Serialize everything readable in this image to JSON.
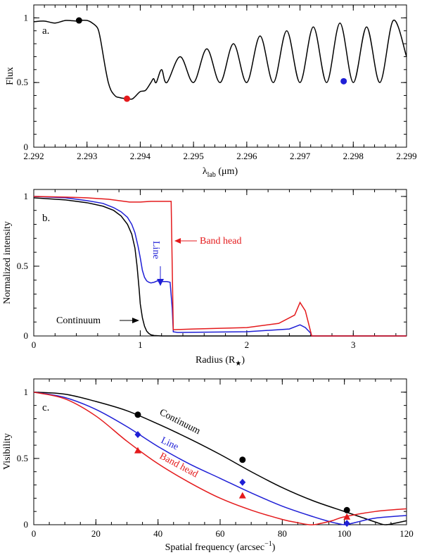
{
  "colors": {
    "black": "#000000",
    "red": "#e41a1c",
    "blue": "#1f1fd6"
  },
  "chart_data": [
    {
      "type": "line",
      "panel_label": "a.",
      "ylabel": "Flux",
      "xlabel_main": "λ",
      "xlabel_sub": "lab",
      "xlabel_unit": " (μm)",
      "xlim": [
        2.292,
        2.299
      ],
      "ylim": [
        0,
        1.1
      ],
      "x_ticks": [
        "2.292",
        "2.293",
        "2.294",
        "2.295",
        "2.296",
        "2.297",
        "2.298",
        "2.299"
      ],
      "y_ticks": [
        "0",
        "0.5",
        "1"
      ],
      "series": [
        {
          "name": "flux",
          "color": "black",
          "x": [
            2.292,
            2.2922,
            2.2924,
            2.2926,
            2.2928,
            2.29285,
            2.293,
            2.2931,
            2.2932,
            2.29325,
            2.2933,
            2.29335,
            2.2934,
            2.29345,
            2.2935,
            2.29355,
            2.2936,
            2.29365,
            2.2937,
            2.29375,
            2.2938,
            2.29385,
            2.2939,
            2.294,
            2.2941,
            2.2942,
            2.29425,
            2.2943,
            2.2944,
            2.2945,
            2.29475,
            2.295,
            2.29525,
            2.2955,
            2.29575,
            2.296,
            2.29625,
            2.2965,
            2.29675,
            2.297,
            2.29725,
            2.2975,
            2.29775,
            2.298,
            2.29825,
            2.2985,
            2.29875,
            2.299
          ],
          "y": [
            0.97,
            0.975,
            0.96,
            0.98,
            0.975,
            0.98,
            0.98,
            0.96,
            0.92,
            0.84,
            0.72,
            0.6,
            0.5,
            0.44,
            0.41,
            0.39,
            0.385,
            0.38,
            0.378,
            0.375,
            0.372,
            0.373,
            0.39,
            0.43,
            0.44,
            0.5,
            0.53,
            0.5,
            0.6,
            0.5,
            0.7,
            0.5,
            0.76,
            0.5,
            0.8,
            0.5,
            0.86,
            0.5,
            0.9,
            0.5,
            0.93,
            0.5,
            0.96,
            0.5,
            0.93,
            0.5,
            0.98,
            0.7
          ]
        }
      ],
      "markers": [
        {
          "x": 2.29285,
          "y": 0.98,
          "color": "black",
          "shape": "circle"
        },
        {
          "x": 2.29375,
          "y": 0.375,
          "color": "red",
          "shape": "circle"
        },
        {
          "x": 2.29782,
          "y": 0.51,
          "color": "blue",
          "shape": "circle"
        }
      ]
    },
    {
      "type": "line",
      "panel_label": "b.",
      "ylabel": "Normalized intensity",
      "xlabel_main": "Radius (R",
      "xlabel_sub": "★",
      "xlabel_unit": ")",
      "xlim": [
        0,
        3.5
      ],
      "ylim": [
        0,
        1.05
      ],
      "x_ticks": [
        "0",
        "1",
        "2",
        "3"
      ],
      "y_ticks": [
        "0",
        "0.5",
        "1"
      ],
      "series": [
        {
          "name": "Continuum",
          "color": "black",
          "x": [
            0,
            0.3,
            0.5,
            0.65,
            0.75,
            0.82,
            0.88,
            0.92,
            0.95,
            0.97,
            0.99,
            1.0,
            1.02,
            1.04,
            1.06,
            1.08,
            1.1,
            1.13,
            1.2,
            3.5
          ],
          "y": [
            0.99,
            0.975,
            0.955,
            0.93,
            0.9,
            0.86,
            0.8,
            0.73,
            0.63,
            0.5,
            0.33,
            0.23,
            0.13,
            0.07,
            0.035,
            0.018,
            0.008,
            0.003,
            0.0,
            0.0
          ]
        },
        {
          "name": "Line",
          "color": "blue",
          "x": [
            0,
            0.3,
            0.5,
            0.65,
            0.75,
            0.82,
            0.88,
            0.92,
            0.95,
            0.98,
            1.0,
            1.02,
            1.04,
            1.06,
            1.08,
            1.1,
            1.13,
            1.16,
            1.2,
            1.25,
            1.28,
            1.3,
            1.31,
            1.35,
            2.0,
            2.4,
            2.5,
            2.55,
            2.6,
            2.61,
            3.5
          ],
          "y": [
            1.0,
            0.99,
            0.97,
            0.95,
            0.92,
            0.89,
            0.85,
            0.8,
            0.74,
            0.64,
            0.56,
            0.47,
            0.42,
            0.395,
            0.385,
            0.38,
            0.385,
            0.395,
            0.39,
            0.39,
            0.385,
            0.2,
            0.03,
            0.025,
            0.03,
            0.05,
            0.08,
            0.06,
            0.02,
            0.0,
            0.0
          ]
        },
        {
          "name": "Band head",
          "color": "red",
          "x": [
            0,
            0.3,
            0.5,
            0.7,
            0.9,
            1.0,
            1.1,
            1.29,
            1.3,
            1.31,
            1.5,
            2.0,
            2.3,
            2.45,
            2.5,
            2.55,
            2.6,
            2.61,
            3.5
          ],
          "y": [
            1.0,
            0.995,
            0.99,
            0.98,
            0.96,
            0.96,
            0.965,
            0.965,
            0.5,
            0.045,
            0.05,
            0.06,
            0.09,
            0.15,
            0.24,
            0.18,
            0.03,
            0.0,
            0.0
          ]
        }
      ],
      "annotations": [
        {
          "text": "Band head",
          "color": "red"
        },
        {
          "text": "Line",
          "color": "blue"
        },
        {
          "text": "Continuum",
          "color": "black"
        }
      ]
    },
    {
      "type": "line",
      "panel_label": "c.",
      "ylabel": "Visibility",
      "xlabel_main": "Spatial frequency (arcsec",
      "xlabel_sup": "−1",
      "xlabel_unit": ")",
      "xlim": [
        0,
        120
      ],
      "ylim": [
        0,
        1.1
      ],
      "x_ticks": [
        "0",
        "20",
        "40",
        "60",
        "80",
        "100",
        "120"
      ],
      "y_ticks": [
        "0",
        "0.5",
        "1"
      ],
      "series": [
        {
          "name": "Continuum",
          "color": "black",
          "x": [
            0,
            10,
            20,
            30,
            40,
            50,
            60,
            70,
            80,
            90,
            100,
            105,
            110,
            113,
            116,
            120
          ],
          "y": [
            1.0,
            0.985,
            0.93,
            0.86,
            0.76,
            0.65,
            0.53,
            0.4,
            0.28,
            0.18,
            0.1,
            0.06,
            0.02,
            0.0,
            0.01,
            0.03
          ]
        },
        {
          "name": "Line",
          "color": "blue",
          "x": [
            0,
            10,
            20,
            30,
            40,
            50,
            60,
            70,
            80,
            90,
            95,
            98,
            100,
            102,
            105,
            110,
            120
          ],
          "y": [
            1.0,
            0.96,
            0.87,
            0.74,
            0.59,
            0.46,
            0.35,
            0.24,
            0.14,
            0.06,
            0.025,
            0.008,
            0.0,
            0.008,
            0.025,
            0.05,
            0.07
          ]
        },
        {
          "name": "Band head",
          "color": "red",
          "x": [
            0,
            10,
            20,
            30,
            40,
            50,
            60,
            70,
            80,
            85,
            88,
            90,
            92,
            96,
            100,
            110,
            120
          ],
          "y": [
            1.0,
            0.95,
            0.82,
            0.63,
            0.46,
            0.32,
            0.2,
            0.11,
            0.04,
            0.015,
            0.002,
            0.0,
            0.008,
            0.03,
            0.06,
            0.1,
            0.12
          ]
        }
      ],
      "markers": [
        {
          "x": 33.5,
          "y": 0.83,
          "color": "black",
          "shape": "circle"
        },
        {
          "x": 67.2,
          "y": 0.49,
          "color": "black",
          "shape": "circle"
        },
        {
          "x": 100.8,
          "y": 0.11,
          "color": "black",
          "shape": "circle"
        },
        {
          "x": 33.5,
          "y": 0.68,
          "color": "blue",
          "shape": "diamond"
        },
        {
          "x": 67.2,
          "y": 0.32,
          "color": "blue",
          "shape": "diamond"
        },
        {
          "x": 100.8,
          "y": 0.01,
          "color": "blue",
          "shape": "diamond"
        },
        {
          "x": 33.5,
          "y": 0.56,
          "color": "red",
          "shape": "triangle"
        },
        {
          "x": 67.2,
          "y": 0.22,
          "color": "red",
          "shape": "triangle"
        },
        {
          "x": 100.8,
          "y": 0.06,
          "color": "red",
          "shape": "triangle"
        }
      ],
      "annotations": [
        {
          "text": "Continuum",
          "color": "black"
        },
        {
          "text": "Line",
          "color": "blue"
        },
        {
          "text": "Band head",
          "color": "red"
        }
      ]
    }
  ]
}
